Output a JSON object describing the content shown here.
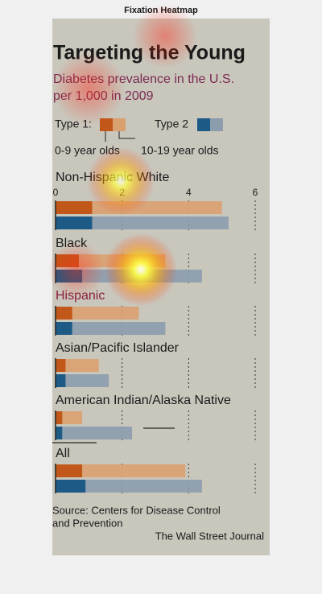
{
  "page_title": "Fixation Heatmap",
  "chart_data": {
    "type": "bar",
    "title": "Targeting the Young",
    "subtitle": [
      "Diabetes prevalence in the U.S.",
      "per 1,000 in 2009"
    ],
    "age_groups": [
      "0-9 year olds",
      "10-19 year olds"
    ],
    "categories": [
      "Non-Hispanic White",
      "Black",
      "Hispanic",
      "Asian/Pacific Islander",
      "American Indian/Alaska Native",
      "All"
    ],
    "series": [
      {
        "name": "Type 1:",
        "colors": [
          "#c2571a",
          "#d9a070"
        ],
        "values_0_9": [
          1.1,
          0.7,
          0.5,
          0.3,
          0.2,
          0.8
        ],
        "values_10_19": [
          5.0,
          3.3,
          2.5,
          1.3,
          0.8,
          3.9
        ]
      },
      {
        "name": "Type 2",
        "colors": [
          "#1d5a86",
          "#8b9cad"
        ],
        "values_0_9": [
          1.1,
          0.8,
          0.5,
          0.3,
          0.2,
          0.9
        ],
        "values_10_19": [
          5.2,
          4.4,
          3.3,
          1.6,
          2.3,
          4.4
        ]
      }
    ],
    "xlim": [
      0,
      6
    ],
    "xticks": [
      0,
      2,
      4,
      6
    ],
    "grid": true,
    "source": [
      "Source: Centers for Disease Control",
      "and Prevention"
    ],
    "credit": "The Wall Street Journal"
  }
}
